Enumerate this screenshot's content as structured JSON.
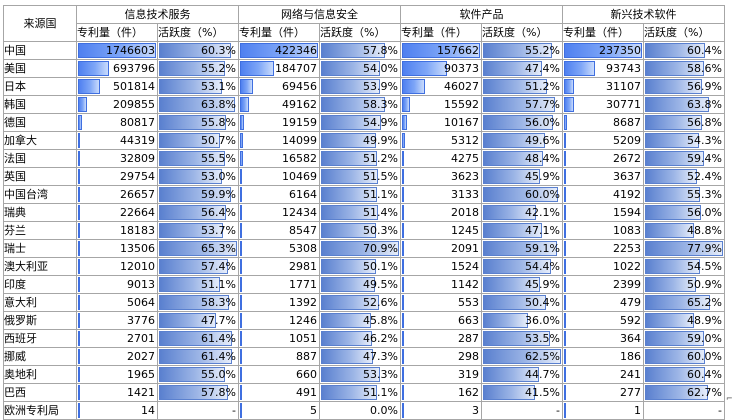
{
  "header": {
    "country_label": "来源国",
    "groups": [
      "信息技术服务",
      "网络与信息安全",
      "软件产品",
      "新兴技术软件"
    ],
    "patent_label": "专利量（件）",
    "activity_label": "活跃度（%）"
  },
  "rows": [
    {
      "country": "中国",
      "cells": [
        {
          "p": "1746603",
          "a": "60.3%"
        },
        {
          "p": "422346",
          "a": "57.8%"
        },
        {
          "p": "157662",
          "a": "55.2%"
        },
        {
          "p": "237350",
          "a": "60.4%"
        }
      ]
    },
    {
      "country": "美国",
      "cells": [
        {
          "p": "693796",
          "a": "55.2%"
        },
        {
          "p": "184707",
          "a": "54.0%"
        },
        {
          "p": "90373",
          "a": "47.4%"
        },
        {
          "p": "93743",
          "a": "58.6%"
        }
      ]
    },
    {
      "country": "日本",
      "cells": [
        {
          "p": "501814",
          "a": "53.1%"
        },
        {
          "p": "69456",
          "a": "53.9%"
        },
        {
          "p": "46027",
          "a": "51.2%"
        },
        {
          "p": "31107",
          "a": "56.9%"
        }
      ]
    },
    {
      "country": "韩国",
      "cells": [
        {
          "p": "209855",
          "a": "63.8%"
        },
        {
          "p": "49162",
          "a": "58.3%"
        },
        {
          "p": "15592",
          "a": "57.7%"
        },
        {
          "p": "30771",
          "a": "63.8%"
        }
      ]
    },
    {
      "country": "德国",
      "cells": [
        {
          "p": "80817",
          "a": "55.8%"
        },
        {
          "p": "19159",
          "a": "54.9%"
        },
        {
          "p": "10167",
          "a": "56.0%"
        },
        {
          "p": "8687",
          "a": "56.8%"
        }
      ]
    },
    {
      "country": "加拿大",
      "cells": [
        {
          "p": "44319",
          "a": "50.7%"
        },
        {
          "p": "14099",
          "a": "49.9%"
        },
        {
          "p": "5312",
          "a": "49.6%"
        },
        {
          "p": "5209",
          "a": "54.3%"
        }
      ]
    },
    {
      "country": "法国",
      "cells": [
        {
          "p": "32809",
          "a": "55.5%"
        },
        {
          "p": "16582",
          "a": "51.2%"
        },
        {
          "p": "4275",
          "a": "48.4%"
        },
        {
          "p": "2672",
          "a": "59.4%"
        }
      ]
    },
    {
      "country": "英国",
      "cells": [
        {
          "p": "29754",
          "a": "53.0%"
        },
        {
          "p": "10469",
          "a": "51.5%"
        },
        {
          "p": "3623",
          "a": "45.9%"
        },
        {
          "p": "3637",
          "a": "52.4%"
        }
      ]
    },
    {
      "country": "中国台湾",
      "cells": [
        {
          "p": "26657",
          "a": "59.9%"
        },
        {
          "p": "6164",
          "a": "51.1%"
        },
        {
          "p": "3133",
          "a": "60.0%"
        },
        {
          "p": "4192",
          "a": "55.3%"
        }
      ]
    },
    {
      "country": "瑞典",
      "cells": [
        {
          "p": "22664",
          "a": "56.4%"
        },
        {
          "p": "12434",
          "a": "51.4%"
        },
        {
          "p": "2018",
          "a": "42.1%"
        },
        {
          "p": "1594",
          "a": "56.0%"
        }
      ]
    },
    {
      "country": "芬兰",
      "cells": [
        {
          "p": "18183",
          "a": "53.7%"
        },
        {
          "p": "8547",
          "a": "50.3%"
        },
        {
          "p": "1245",
          "a": "47.1%"
        },
        {
          "p": "1083",
          "a": "48.8%"
        }
      ]
    },
    {
      "country": "瑞士",
      "cells": [
        {
          "p": "13506",
          "a": "65.3%"
        },
        {
          "p": "5308",
          "a": "70.9%"
        },
        {
          "p": "2091",
          "a": "59.1%"
        },
        {
          "p": "2253",
          "a": "77.9%"
        }
      ]
    },
    {
      "country": "澳大利亚",
      "cells": [
        {
          "p": "12010",
          "a": "57.4%"
        },
        {
          "p": "2981",
          "a": "50.1%"
        },
        {
          "p": "1524",
          "a": "54.4%"
        },
        {
          "p": "1022",
          "a": "54.5%"
        }
      ]
    },
    {
      "country": "印度",
      "cells": [
        {
          "p": "9013",
          "a": "51.1%"
        },
        {
          "p": "1771",
          "a": "49.5%"
        },
        {
          "p": "1142",
          "a": "45.9%"
        },
        {
          "p": "2399",
          "a": "50.9%"
        }
      ]
    },
    {
      "country": "意大利",
      "cells": [
        {
          "p": "5064",
          "a": "58.3%"
        },
        {
          "p": "1392",
          "a": "52.6%"
        },
        {
          "p": "553",
          "a": "50.4%"
        },
        {
          "p": "479",
          "a": "65.2%"
        }
      ]
    },
    {
      "country": "俄罗斯",
      "cells": [
        {
          "p": "3776",
          "a": "47.7%"
        },
        {
          "p": "1246",
          "a": "45.8%"
        },
        {
          "p": "663",
          "a": "36.0%"
        },
        {
          "p": "592",
          "a": "48.9%"
        }
      ]
    },
    {
      "country": "西班牙",
      "cells": [
        {
          "p": "2701",
          "a": "61.4%"
        },
        {
          "p": "1051",
          "a": "46.2%"
        },
        {
          "p": "287",
          "a": "53.5%"
        },
        {
          "p": "364",
          "a": "59.0%"
        }
      ]
    },
    {
      "country": "挪威",
      "cells": [
        {
          "p": "2027",
          "a": "61.4%"
        },
        {
          "p": "887",
          "a": "47.3%"
        },
        {
          "p": "298",
          "a": "62.5%"
        },
        {
          "p": "186",
          "a": "60.0%"
        }
      ]
    },
    {
      "country": "奥地利",
      "cells": [
        {
          "p": "1965",
          "a": "55.0%"
        },
        {
          "p": "660",
          "a": "53.3%"
        },
        {
          "p": "319",
          "a": "44.7%"
        },
        {
          "p": "241",
          "a": "60.4%"
        }
      ]
    },
    {
      "country": "巴西",
      "cells": [
        {
          "p": "1421",
          "a": "57.8%"
        },
        {
          "p": "491",
          "a": "51.1%"
        },
        {
          "p": "162",
          "a": "41.5%"
        },
        {
          "p": "277",
          "a": "62.7%"
        }
      ]
    },
    {
      "country": "欧洲专利局",
      "cells": [
        {
          "p": "14",
          "a": "-"
        },
        {
          "p": "5",
          "a": "0.0%"
        },
        {
          "p": "3",
          "a": "-"
        },
        {
          "p": "1",
          "a": "-"
        }
      ]
    }
  ],
  "colors": {
    "patent_bar": "#4f80f0",
    "activity_bar": "#5a80cf",
    "grid": "#a6a6a6"
  }
}
